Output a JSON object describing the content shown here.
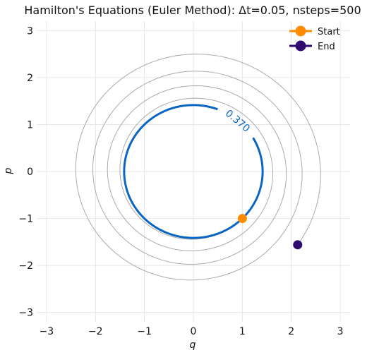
{
  "chart_data": {
    "type": "line",
    "title": "Hamilton's Equations (Euler Method): Δt=0.05, nsteps=500",
    "xlabel": "q",
    "ylabel": "p",
    "xlim": [
      -3.2,
      3.2
    ],
    "ylim": [
      -3.2,
      3.2
    ],
    "xticks": [
      -3,
      -2,
      -1,
      0,
      1,
      2,
      3
    ],
    "yticks": [
      -3,
      -2,
      -1,
      0,
      1,
      2,
      3
    ],
    "tick_labels": [
      "−3",
      "−2",
      "−1",
      "0",
      "1",
      "2",
      "3"
    ],
    "grid": true,
    "legend_position": "top-right",
    "integration": {
      "dt": 0.05,
      "nsteps": 500
    },
    "trajectory": {
      "q0": 1,
      "p0": -1,
      "color": "#aaaaaa"
    },
    "contour": {
      "level": 0.37,
      "label": "0.370",
      "radius": 1.4142,
      "color": "#0a66c2",
      "label_angle_deg": 50
    },
    "series": [
      {
        "name": "Start",
        "q": 1,
        "p": -1,
        "color": "#ff8c00"
      },
      {
        "name": "End",
        "q": 2.13,
        "p": -1.56,
        "color": "#2e0a6e"
      }
    ]
  }
}
